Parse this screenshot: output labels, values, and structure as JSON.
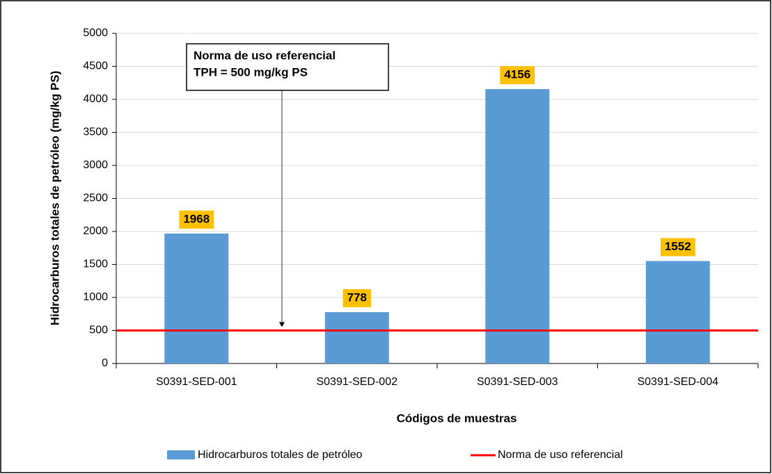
{
  "chart_data": {
    "type": "bar",
    "categories": [
      "S0391-SED-001",
      "S0391-SED-002",
      "S0391-SED-003",
      "S0391-SED-004"
    ],
    "series": [
      {
        "name": "Hidrocarburos totales de petróleo",
        "color": "#5b9bd5",
        "values": [
          1968,
          778,
          4156,
          1552
        ]
      }
    ],
    "reference_line": {
      "name": "Norma de uso referencial",
      "value": 500,
      "color": "#ff0000"
    },
    "annotation": [
      "Norma de uso referencial",
      "TPH = 500 mg/kg PS"
    ],
    "xlabel": "Códigos de muestras",
    "ylabel": "Hidrocarburos totales de petróleo (mg/kg PS)",
    "ylim": [
      0,
      5000
    ],
    "yticks": [
      0,
      500,
      1000,
      1500,
      2000,
      2500,
      3000,
      3500,
      4000,
      4500,
      5000
    ],
    "grid": true,
    "label_color": "#ffc000"
  }
}
